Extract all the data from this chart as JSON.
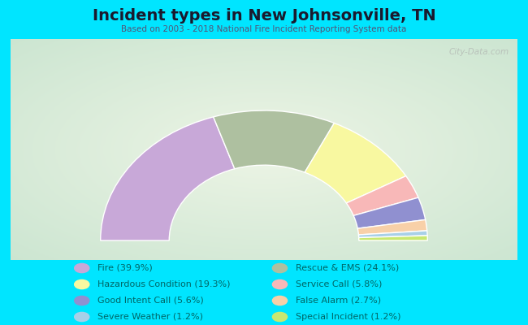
{
  "title": "Incident types in New Johnsonville, TN",
  "subtitle": "Based on 2003 - 2018 National Fire Incident Reporting System data",
  "background_color": "#00e5ff",
  "segments": [
    {
      "label": "Fire",
      "pct": 39.9,
      "color": "#c8a8d8"
    },
    {
      "label": "Rescue & EMS",
      "pct": 24.1,
      "color": "#aec0a0"
    },
    {
      "label": "Hazardous Condition",
      "pct": 19.3,
      "color": "#f8f8a0"
    },
    {
      "label": "Service Call",
      "pct": 5.8,
      "color": "#f8b8b8"
    },
    {
      "label": "Good Intent Call",
      "pct": 5.6,
      "color": "#9090d0"
    },
    {
      "label": "False Alarm",
      "pct": 2.7,
      "color": "#f8d0a8"
    },
    {
      "label": "Severe Weather",
      "pct": 1.2,
      "color": "#a8d0e8"
    },
    {
      "label": "Special Incident",
      "pct": 1.2,
      "color": "#c8e870"
    }
  ],
  "legend_col1": [
    {
      "label": "Fire (39.9%)",
      "color": "#c8a8d8"
    },
    {
      "label": "Hazardous Condition (19.3%)",
      "color": "#f8f8a0"
    },
    {
      "label": "Good Intent Call (5.6%)",
      "color": "#9090d0"
    },
    {
      "label": "Severe Weather (1.2%)",
      "color": "#a8d0e8"
    }
  ],
  "legend_col2": [
    {
      "label": "Rescue & EMS (24.1%)",
      "color": "#aec0a0"
    },
    {
      "label": "Service Call (5.8%)",
      "color": "#f8b8b8"
    },
    {
      "label": "False Alarm (2.7%)",
      "color": "#f8d0a8"
    },
    {
      "label": "Special Incident (1.2%)",
      "color": "#c8e870"
    }
  ],
  "watermark": "City-Data.com",
  "title_color": "#1a1a2e",
  "subtitle_color": "#555577",
  "legend_text_color": "#006666",
  "outer_r": 1.0,
  "inner_r": 0.58
}
